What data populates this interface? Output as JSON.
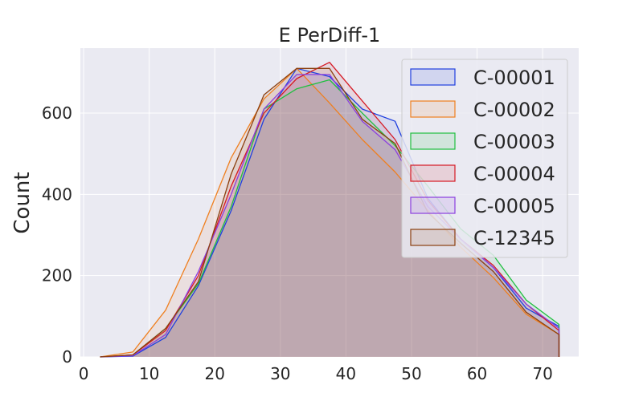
{
  "chart_data": {
    "type": "area",
    "title": "E PerDiff-1",
    "xlabel": "",
    "ylabel": "Count",
    "xlim": [
      -0.5,
      75.5
    ],
    "ylim": [
      0,
      760
    ],
    "xticks": [
      0,
      10,
      20,
      30,
      40,
      50,
      60,
      70
    ],
    "yticks": [
      0,
      200,
      400,
      600
    ],
    "grid": true,
    "legend_position": "top-right",
    "x": [
      2.5,
      7.5,
      12.5,
      17.5,
      22.5,
      27.5,
      32.5,
      37.5,
      42.5,
      47.5,
      52.5,
      57.5,
      62.5,
      67.5,
      72.5
    ],
    "series": [
      {
        "name": "C-00001",
        "color": "#1f3fdf",
        "values": [
          0,
          2,
          48,
          175,
          360,
          585,
          710,
          690,
          610,
          580,
          390,
          290,
          220,
          120,
          75
        ]
      },
      {
        "name": "C-00002",
        "color": "#ef7f1f",
        "values": [
          0,
          12,
          115,
          290,
          490,
          635,
          710,
          625,
          535,
          455,
          360,
          270,
          195,
          105,
          55
        ]
      },
      {
        "name": "C-00003",
        "color": "#1fbf3f",
        "values": [
          0,
          5,
          70,
          180,
          370,
          610,
          660,
          682,
          600,
          520,
          420,
          315,
          250,
          140,
          80
        ]
      },
      {
        "name": "C-00004",
        "color": "#d61a24",
        "values": [
          0,
          5,
          65,
          200,
          420,
          600,
          685,
          725,
          630,
          535,
          385,
          290,
          225,
          130,
          65
        ]
      },
      {
        "name": "C-00005",
        "color": "#8b3fdf",
        "values": [
          0,
          3,
          55,
          210,
          400,
          610,
          695,
          695,
          580,
          510,
          370,
          290,
          220,
          130,
          70
        ]
      },
      {
        "name": "C-12345",
        "color": "#8b3f0f",
        "values": [
          0,
          5,
          70,
          185,
          450,
          645,
          710,
          710,
          585,
          525,
          355,
          280,
          210,
          110,
          55
        ]
      }
    ]
  }
}
